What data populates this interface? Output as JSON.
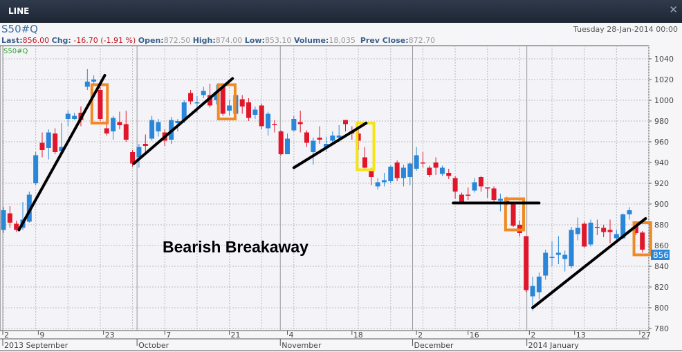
{
  "window": {
    "title": "LINE",
    "close_icon": "close-icon"
  },
  "header": {
    "symbol": "S50#Q",
    "datetime": "Tuesday 28-Jan-2014 00:00",
    "last_label": "Last:",
    "last": "856.00",
    "chg_label": "Chg:",
    "chg": "-16.70 (-1.91 %)",
    "open_label": "Open:",
    "open": "872.50",
    "high_label": "High:",
    "high": "874.00",
    "low_label": "Low:",
    "low": "853.10",
    "volume_label": "Volume:",
    "volume": "18,035",
    "prev_label": "Prev Close:",
    "prev": "872.70"
  },
  "colors": {
    "up": "#2a86d8",
    "down": "#e0162b",
    "box_orange": "#f08a24",
    "box_yellow": "#f5e31a",
    "trendline": "#000000",
    "last_tag": "#2a86d8"
  },
  "chart_data": {
    "type": "candlestick",
    "legend": "S50#Q",
    "annotation_text": "Bearish Breakaway",
    "last_price_tag": "856",
    "ylim": [
      775,
      1048
    ],
    "yticks": [
      780,
      800,
      820,
      840,
      860,
      880,
      900,
      920,
      940,
      960,
      980,
      1000,
      1020,
      1040
    ],
    "grid": true,
    "candles_ohlc": [
      [
        875,
        897,
        872,
        894
      ],
      [
        891,
        898,
        877,
        882
      ],
      [
        881,
        884,
        873,
        875
      ],
      [
        877,
        902,
        875,
        885
      ],
      [
        883,
        912,
        882,
        909
      ],
      [
        920,
        950,
        918,
        947
      ],
      [
        959,
        969,
        945,
        952
      ],
      [
        954,
        972,
        943,
        969
      ],
      [
        968,
        973,
        948,
        950
      ],
      [
        951,
        978,
        948,
        955
      ],
      [
        982,
        990,
        975,
        987
      ],
      [
        982,
        988,
        981,
        985
      ],
      [
        988,
        994,
        975,
        981
      ],
      [
        1013,
        1030,
        1010,
        1018
      ],
      [
        1018,
        1024,
        1015,
        1020
      ],
      [
        1010,
        1013,
        980,
        982
      ],
      [
        973,
        977,
        966,
        968
      ],
      [
        970,
        985,
        962,
        983
      ],
      [
        979,
        989,
        972,
        976
      ],
      [
        977,
        990,
        960,
        962
      ],
      [
        950,
        952,
        936,
        939
      ],
      [
        945,
        958,
        935,
        955
      ],
      [
        958,
        967,
        950,
        956
      ],
      [
        963,
        985,
        961,
        981
      ],
      [
        970,
        982,
        965,
        979
      ],
      [
        969,
        972,
        956,
        961
      ],
      [
        962,
        984,
        958,
        981
      ],
      [
        978,
        982,
        970,
        980
      ],
      [
        981,
        1000,
        978,
        998
      ],
      [
        1007,
        1010,
        996,
        999
      ],
      [
        997,
        1004,
        988,
        998
      ],
      [
        1005,
        1013,
        1002,
        1009
      ],
      [
        1005,
        1016,
        993,
        995
      ],
      [
        1000,
        1015,
        996,
        1008
      ],
      [
        1013,
        1016,
        985,
        987
      ],
      [
        990,
        1000,
        985,
        995
      ],
      [
        987,
        1008,
        983,
        1005
      ],
      [
        1001,
        1005,
        987,
        994
      ],
      [
        998,
        1002,
        980,
        983
      ],
      [
        986,
        994,
        982,
        991
      ],
      [
        995,
        997,
        972,
        975
      ],
      [
        973,
        989,
        966,
        987
      ],
      [
        977,
        981,
        969,
        976
      ],
      [
        970,
        971,
        947,
        948
      ],
      [
        948,
        968,
        948,
        963
      ],
      [
        971,
        985,
        970,
        982
      ],
      [
        979,
        990,
        969,
        977
      ],
      [
        969,
        971,
        955,
        959
      ],
      [
        950,
        964,
        938,
        961
      ],
      [
        964,
        975,
        958,
        962
      ],
      [
        955,
        965,
        950,
        958
      ],
      [
        961,
        970,
        958,
        966
      ],
      [
        964,
        976,
        960,
        966
      ],
      [
        981,
        981,
        970,
        977
      ],
      [
        970,
        975,
        962,
        968
      ],
      [
        968,
        972,
        952,
        961
      ],
      [
        945,
        955,
        933,
        935
      ],
      [
        933,
        935,
        918,
        926
      ],
      [
        917,
        925,
        914,
        921
      ],
      [
        921,
        930,
        917,
        923
      ],
      [
        922,
        937,
        920,
        936
      ],
      [
        940,
        942,
        922,
        925
      ],
      [
        925,
        938,
        917,
        935
      ],
      [
        926,
        940,
        918,
        939
      ],
      [
        934,
        955,
        932,
        947
      ],
      [
        940,
        950,
        935,
        939
      ],
      [
        935,
        937,
        926,
        928
      ],
      [
        940,
        945,
        928,
        935
      ],
      [
        929,
        937,
        927,
        935
      ],
      [
        930,
        934,
        924,
        927
      ],
      [
        925,
        927,
        905,
        912
      ],
      [
        909,
        911,
        900,
        902
      ],
      [
        909,
        916,
        904,
        908
      ],
      [
        913,
        925,
        911,
        921
      ],
      [
        926,
        927,
        912,
        917
      ],
      [
        916,
        916,
        906,
        915
      ],
      [
        915,
        917,
        902,
        904
      ],
      [
        903,
        910,
        893,
        905
      ],
      [
        903,
        907,
        898,
        900
      ],
      [
        900,
        902,
        878,
        879
      ],
      [
        880,
        884,
        869,
        872
      ],
      [
        869,
        869,
        815,
        817
      ],
      [
        811,
        830,
        797,
        821
      ],
      [
        815,
        834,
        808,
        830
      ],
      [
        831,
        856,
        827,
        853
      ],
      [
        848,
        864,
        840,
        849
      ],
      [
        851,
        869,
        842,
        853
      ],
      [
        847,
        855,
        835,
        851
      ],
      [
        840,
        878,
        838,
        875
      ],
      [
        871,
        887,
        865,
        877
      ],
      [
        881,
        883,
        858,
        859
      ],
      [
        861,
        885,
        859,
        882
      ],
      [
        878,
        885,
        870,
        877
      ],
      [
        877,
        880,
        868,
        873
      ],
      [
        875,
        885,
        862,
        873
      ],
      [
        867,
        875,
        862,
        871
      ],
      [
        867,
        891,
        866,
        890
      ],
      [
        890,
        897,
        885,
        894
      ],
      [
        880,
        882,
        870,
        872
      ],
      [
        872.5,
        874,
        853.1,
        856
      ]
    ],
    "x_day_ticks": [
      {
        "label": "2",
        "candle": 0
      },
      {
        "label": "9",
        "candle": 5.4
      },
      {
        "label": "23",
        "candle": 15.5
      },
      {
        "label": "7",
        "candle": 25
      },
      {
        "label": "21",
        "candle": 35
      },
      {
        "label": "4",
        "candle": 44
      },
      {
        "label": "18",
        "candle": 54
      },
      {
        "label": "2",
        "candle": 64
      },
      {
        "label": "16",
        "candle": 72
      },
      {
        "label": "2",
        "candle": 81.5
      },
      {
        "label": "13",
        "candle": 88.5
      },
      {
        "label": "27",
        "candle": 98.6
      }
    ],
    "x_month_labels": [
      {
        "label": "2013 September",
        "candle": 0
      },
      {
        "label": "October",
        "candle": 20.7
      },
      {
        "label": "November",
        "candle": 42.9
      },
      {
        "label": "December",
        "candle": 63.4
      },
      {
        "label": "2014 January",
        "candle": 81.1
      }
    ],
    "trendlines": [
      [
        [
          2.4,
          875
        ],
        [
          15.7,
          1024
        ]
      ],
      [
        [
          20.2,
          939
        ],
        [
          35.5,
          1021
        ]
      ],
      [
        [
          45,
          935
        ],
        [
          56.2,
          978
        ]
      ],
      [
        [
          69.7,
          901
        ],
        [
          83,
          901
        ]
      ],
      [
        [
          82,
          800
        ],
        [
          99.5,
          886
        ]
      ]
    ],
    "boxes": [
      {
        "color": "orange",
        "from": [
          13.7,
          1015
        ],
        "to": [
          16.1,
          978
        ]
      },
      {
        "color": "orange",
        "from": [
          33.3,
          1015
        ],
        "to": [
          35.9,
          982
        ]
      },
      {
        "color": "yellow",
        "from": [
          54.8,
          978
        ],
        "to": [
          57.4,
          933
        ]
      },
      {
        "color": "orange",
        "from": [
          77.8,
          905
        ],
        "to": [
          80.6,
          875
        ]
      },
      {
        "color": "orange",
        "from": [
          97.7,
          882
        ],
        "to": [
          100.3,
          851
        ]
      }
    ]
  }
}
